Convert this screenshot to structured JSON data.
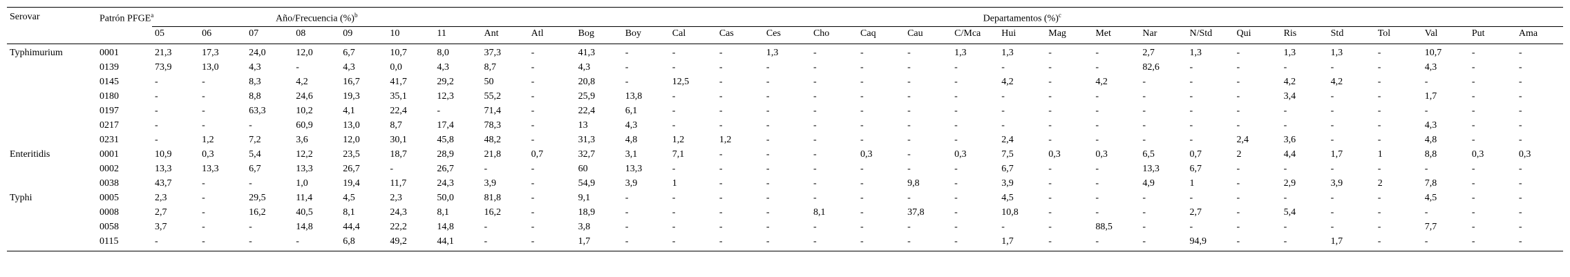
{
  "header": {
    "serovar": "Serovar",
    "pattern": "Patrón PFGE",
    "pattern_note": "a",
    "year_group": "Año/Frecuencia (%)",
    "year_note": "b",
    "dept_group": "Departamentos (%)",
    "dept_note": "c",
    "years": [
      "05",
      "06",
      "07",
      "08",
      "09",
      "10",
      "11"
    ],
    "departments": [
      "Ant",
      "Atl",
      "Bog",
      "Boy",
      "Cal",
      "Cas",
      "Ces",
      "Cho",
      "Caq",
      "Cau",
      "C/Mca",
      "Hui",
      "Mag",
      "Met",
      "Nar",
      "N/Std",
      "Qui",
      "Ris",
      "Std",
      "Tol",
      "Val",
      "Put",
      "Ama"
    ]
  },
  "groups": [
    {
      "serovar": "Typhimurium",
      "rows": [
        {
          "pattern": "0001",
          "values": [
            "21,3",
            "17,3",
            "24,0",
            "12,0",
            "6,7",
            "10,7",
            "8,0",
            "37,3",
            "-",
            "41,3",
            "-",
            "-",
            "-",
            "1,3",
            "-",
            "-",
            "-",
            "1,3",
            "1,3",
            "-",
            "-",
            "2,7",
            "1,3",
            "-",
            "1,3",
            "1,3",
            "-",
            "10,7",
            "-",
            "-"
          ]
        },
        {
          "pattern": "0139",
          "values": [
            "73,9",
            "13,0",
            "4,3",
            "-",
            "4,3",
            "0,0",
            "4,3",
            "8,7",
            "-",
            "4,3",
            "-",
            "-",
            "-",
            "-",
            "-",
            "-",
            "-",
            "-",
            "-",
            "-",
            "-",
            "82,6",
            "-",
            "-",
            "-",
            "-",
            "-",
            "4,3",
            "-",
            "-"
          ]
        },
        {
          "pattern": "0145",
          "values": [
            "-",
            "-",
            "8,3",
            "4,2",
            "16,7",
            "41,7",
            "29,2",
            "50",
            "-",
            "20,8",
            "-",
            "12,5",
            "-",
            "-",
            "-",
            "-",
            "-",
            "-",
            "4,2",
            "-",
            "4,2",
            "-",
            "-",
            "-",
            "4,2",
            "4,2",
            "-",
            "-",
            "-",
            "-"
          ]
        },
        {
          "pattern": "0180",
          "values": [
            "-",
            "-",
            "8,8",
            "24,6",
            "19,3",
            "35,1",
            "12,3",
            "55,2",
            "-",
            "25,9",
            "13,8",
            "-",
            "-",
            "-",
            "-",
            "-",
            "-",
            "-",
            "-",
            "-",
            "-",
            "-",
            "-",
            "-",
            "3,4",
            "-",
            "-",
            "1,7",
            "-",
            "-"
          ]
        },
        {
          "pattern": "0197",
          "values": [
            "-",
            "-",
            "63,3",
            "10,2",
            "4,1",
            "22,4",
            "-",
            "71,4",
            "-",
            "22,4",
            "6,1",
            "-",
            "-",
            "-",
            "-",
            "-",
            "-",
            "-",
            "-",
            "-",
            "-",
            "-",
            "-",
            "-",
            "-",
            "-",
            "-",
            "-",
            "-",
            "-"
          ]
        },
        {
          "pattern": "0217",
          "values": [
            "-",
            "-",
            "-",
            "60,9",
            "13,0",
            "8,7",
            "17,4",
            "78,3",
            "-",
            "13",
            "4,3",
            "-",
            "-",
            "-",
            "-",
            "-",
            "-",
            "-",
            "-",
            "-",
            "-",
            "-",
            "-",
            "-",
            "-",
            "-",
            "-",
            "4,3",
            "-",
            "-"
          ]
        },
        {
          "pattern": "0231",
          "values": [
            "-",
            "1,2",
            "7,2",
            "3,6",
            "12,0",
            "30,1",
            "45,8",
            "48,2",
            "-",
            "31,3",
            "4,8",
            "1,2",
            "1,2",
            "-",
            "-",
            "-",
            "-",
            "-",
            "2,4",
            "-",
            "-",
            "-",
            "-",
            "2,4",
            "3,6",
            "-",
            "-",
            "4,8",
            "-",
            "-"
          ]
        }
      ]
    },
    {
      "serovar": "Enteritidis",
      "rows": [
        {
          "pattern": "0001",
          "values": [
            "10,9",
            "0,3",
            "5,4",
            "12,2",
            "23,5",
            "18,7",
            "28,9",
            "21,8",
            "0,7",
            "32,7",
            "3,1",
            "7,1",
            "-",
            "-",
            "-",
            "0,3",
            "-",
            "0,3",
            "7,5",
            "0,3",
            "0,3",
            "6,5",
            "0,7",
            "2",
            "4,4",
            "1,7",
            "1",
            "8,8",
            "0,3",
            "0,3"
          ]
        },
        {
          "pattern": "0002",
          "values": [
            "13,3",
            "13,3",
            "6,7",
            "13,3",
            "26,7",
            "-",
            "26,7",
            "-",
            "-",
            "60",
            "13,3",
            "-",
            "-",
            "-",
            "-",
            "-",
            "-",
            "-",
            "6,7",
            "-",
            "-",
            "13,3",
            "6,7",
            "-",
            "-",
            "-",
            "-",
            "-",
            "-",
            "-"
          ]
        },
        {
          "pattern": "0038",
          "values": [
            "43,7",
            "-",
            "-",
            "1,0",
            "19,4",
            "11,7",
            "24,3",
            "3,9",
            "-",
            "54,9",
            "3,9",
            "1",
            "-",
            "-",
            "-",
            "-",
            "9,8",
            "-",
            "3,9",
            "-",
            "-",
            "4,9",
            "1",
            "-",
            "2,9",
            "3,9",
            "2",
            "7,8",
            "-",
            "-"
          ]
        }
      ]
    },
    {
      "serovar": "Typhi",
      "rows": [
        {
          "pattern": "0005",
          "values": [
            "2,3",
            "-",
            "29,5",
            "11,4",
            "4,5",
            "2,3",
            "50,0",
            "81,8",
            "-",
            "9,1",
            "-",
            "-",
            "-",
            "-",
            "-",
            "-",
            "-",
            "-",
            "4,5",
            "-",
            "-",
            "-",
            "-",
            "-",
            "-",
            "-",
            "-",
            "4,5",
            "-",
            "-"
          ]
        },
        {
          "pattern": "0008",
          "values": [
            "2,7",
            "-",
            "16,2",
            "40,5",
            "8,1",
            "24,3",
            "8,1",
            "16,2",
            "-",
            "18,9",
            "-",
            "-",
            "-",
            "-",
            "8,1",
            "-",
            "37,8",
            "-",
            "10,8",
            "-",
            "-",
            "-",
            "2,7",
            "-",
            "5,4",
            "-",
            "-",
            "-",
            "-",
            "-"
          ]
        },
        {
          "pattern": "0058",
          "values": [
            "3,7",
            "-",
            "-",
            "14,8",
            "44,4",
            "22,2",
            "14,8",
            "-",
            "-",
            "3,8",
            "-",
            "-",
            "-",
            "-",
            "-",
            "-",
            "-",
            "-",
            "-",
            "-",
            "88,5",
            "-",
            "-",
            "-",
            "-",
            "-",
            "-",
            "7,7",
            "-",
            "-"
          ]
        },
        {
          "pattern": "0115",
          "values": [
            "-",
            "-",
            "-",
            "-",
            "6,8",
            "49,2",
            "44,1",
            "-",
            "-",
            "1,7",
            "-",
            "-",
            "-",
            "-",
            "-",
            "-",
            "-",
            "-",
            "1,7",
            "-",
            "-",
            "-",
            "94,9",
            "-",
            "-",
            "1,7",
            "-",
            "-",
            "-",
            "-"
          ]
        }
      ]
    }
  ]
}
